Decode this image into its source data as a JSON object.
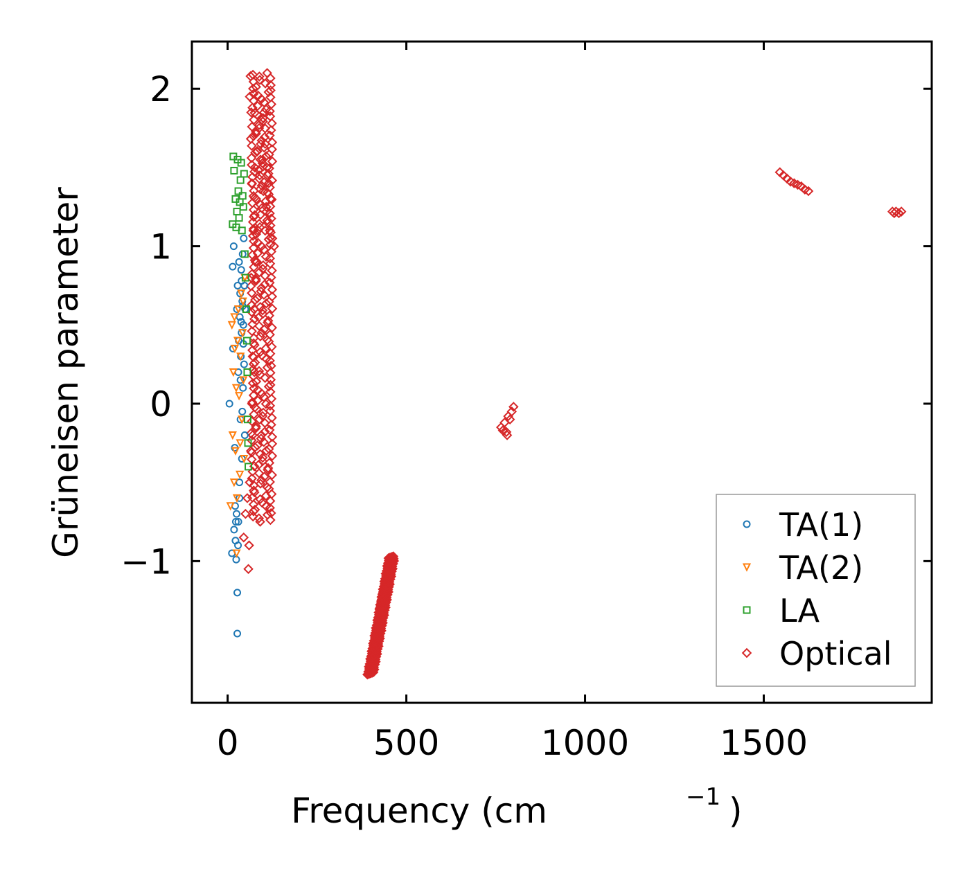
{
  "chart_data": {
    "type": "scatter",
    "title": "",
    "xlabel": "Frequency (cm",
    "xlabel_sup": "−1",
    "xlabel_suffix": ")",
    "ylabel": "Grüneisen parameter",
    "xlim": [
      -100,
      1970
    ],
    "ylim": [
      -1.9,
      2.3
    ],
    "xticks": [
      0,
      500,
      1000,
      1500
    ],
    "xtick_labels": [
      "0",
      "500",
      "1000",
      "1500"
    ],
    "yticks": [
      -1,
      0,
      1,
      2
    ],
    "ytick_labels": [
      "−1",
      "0",
      "1",
      "2"
    ],
    "legend_position": "lower-right",
    "series": [
      {
        "name": "TA(1)",
        "marker": "circle",
        "color": "#1f77b4",
        "points": [
          [
            5,
            0.0
          ],
          [
            12,
            -0.95
          ],
          [
            14,
            0.87
          ],
          [
            17,
            1.0
          ],
          [
            15,
            0.35
          ],
          [
            20,
            -0.28
          ],
          [
            22,
            -0.87
          ],
          [
            24,
            -0.99
          ],
          [
            25,
            -0.7
          ],
          [
            26,
            0.6
          ],
          [
            27,
            -1.2
          ],
          [
            27,
            -1.46
          ],
          [
            28,
            0.75
          ],
          [
            29,
            -0.9
          ],
          [
            30,
            0.2
          ],
          [
            30,
            -0.75
          ],
          [
            31,
            0.4
          ],
          [
            32,
            0.9
          ],
          [
            33,
            -0.5
          ],
          [
            34,
            0.55
          ],
          [
            35,
            0.7
          ],
          [
            36,
            -0.1
          ],
          [
            37,
            0.3
          ],
          [
            38,
            0.85
          ],
          [
            39,
            0.45
          ],
          [
            40,
            -0.35
          ],
          [
            41,
            0.65
          ],
          [
            42,
            0.95
          ],
          [
            43,
            0.1
          ],
          [
            44,
            0.5
          ],
          [
            45,
            1.05
          ],
          [
            46,
            0.25
          ],
          [
            47,
            0.75
          ],
          [
            48,
            -0.2
          ],
          [
            49,
            0.6
          ],
          [
            33,
            -0.6
          ],
          [
            36,
            0.15
          ],
          [
            41,
            -0.05
          ],
          [
            44,
            0.38
          ],
          [
            39,
            0.78
          ],
          [
            23,
            -0.75
          ],
          [
            18,
            -0.8
          ],
          [
            21,
            -0.65
          ],
          [
            38,
            0.52
          ],
          [
            42,
            0.62
          ]
        ]
      },
      {
        "name": "TA(2)",
        "marker": "triangle-down",
        "color": "#ff7f0e",
        "points": [
          [
            8,
            -0.65
          ],
          [
            12,
            0.5
          ],
          [
            14,
            -0.2
          ],
          [
            16,
            0.2
          ],
          [
            18,
            -0.5
          ],
          [
            20,
            0.35
          ],
          [
            22,
            -0.3
          ],
          [
            24,
            0.1
          ],
          [
            26,
            -0.6
          ],
          [
            28,
            0.4
          ],
          [
            30,
            0.6
          ],
          [
            32,
            0.05
          ],
          [
            34,
            -0.45
          ],
          [
            36,
            0.3
          ],
          [
            38,
            0.7
          ],
          [
            40,
            -0.1
          ],
          [
            42,
            0.45
          ],
          [
            44,
            0.15
          ],
          [
            46,
            -0.35
          ],
          [
            48,
            0.8
          ],
          [
            25,
            -0.95
          ],
          [
            19,
            0.55
          ],
          [
            35,
            -0.25
          ],
          [
            43,
            0.65
          ]
        ]
      },
      {
        "name": "LA",
        "marker": "square",
        "color": "#2ca02c",
        "points": [
          [
            14,
            1.14
          ],
          [
            16,
            1.57
          ],
          [
            18,
            1.48
          ],
          [
            22,
            1.3
          ],
          [
            24,
            1.12
          ],
          [
            26,
            1.22
          ],
          [
            28,
            1.55
          ],
          [
            30,
            1.35
          ],
          [
            32,
            1.18
          ],
          [
            34,
            1.28
          ],
          [
            36,
            1.42
          ],
          [
            38,
            1.53
          ],
          [
            40,
            1.1
          ],
          [
            42,
            1.32
          ],
          [
            44,
            1.25
          ],
          [
            46,
            1.46
          ],
          [
            48,
            0.95
          ],
          [
            50,
            0.8
          ],
          [
            52,
            0.6
          ],
          [
            54,
            0.4
          ],
          [
            55,
            0.2
          ],
          [
            56,
            -0.1
          ],
          [
            57,
            -0.25
          ],
          [
            58,
            -0.4
          ]
        ]
      },
      {
        "name": "Optical",
        "marker": "diamond",
        "color": "#d62728",
        "points": [
          [
            45,
            -0.85
          ],
          [
            50,
            -0.7
          ],
          [
            55,
            -0.6
          ],
          [
            58,
            -1.05
          ],
          [
            60,
            -0.9
          ],
          [
            62,
            -0.5
          ],
          [
            62,
            1.95
          ],
          [
            64,
            2.08
          ],
          [
            65,
            -0.3
          ],
          [
            66,
            1.85
          ],
          [
            68,
            0.0
          ],
          [
            70,
            0.3
          ],
          [
            72,
            1.7
          ],
          [
            74,
            0.6
          ],
          [
            76,
            1.5
          ],
          [
            78,
            0.9
          ],
          [
            80,
            1.3
          ],
          [
            82,
            1.6
          ],
          [
            85,
            1.1
          ],
          [
            88,
            1.75
          ],
          [
            90,
            1.45
          ],
          [
            92,
            1.2
          ],
          [
            95,
            1.8
          ],
          [
            98,
            1.55
          ],
          [
            100,
            1.35
          ],
          [
            102,
            1.85
          ],
          [
            105,
            1.65
          ],
          [
            108,
            1.25
          ],
          [
            110,
            1.5
          ],
          [
            112,
            1.15
          ],
          [
            115,
            1.4
          ],
          [
            118,
            1.1
          ],
          [
            120,
            1.3
          ],
          [
            125,
            1.05
          ],
          [
            130,
            1.0
          ],
          [
            68,
            1.4
          ],
          [
            72,
            1.1
          ],
          [
            75,
            0.2
          ],
          [
            70,
            -0.2
          ],
          [
            66,
            0.8
          ],
          [
            405,
            -1.7
          ],
          [
            410,
            -1.6
          ],
          [
            415,
            -1.5
          ],
          [
            420,
            -1.4
          ],
          [
            425,
            -1.3
          ],
          [
            430,
            -1.25
          ],
          [
            435,
            -1.2
          ],
          [
            440,
            -1.15
          ],
          [
            445,
            -1.1
          ],
          [
            450,
            -1.05
          ],
          [
            455,
            -1.0
          ],
          [
            458,
            -0.98
          ],
          [
            765,
            -0.15
          ],
          [
            770,
            -0.17
          ],
          [
            775,
            -0.12
          ],
          [
            780,
            -0.18
          ],
          [
            785,
            -0.08
          ],
          [
            790,
            -0.1
          ],
          [
            795,
            -0.05
          ],
          [
            800,
            -0.02
          ],
          [
            782,
            -0.2
          ],
          [
            1545,
            1.47
          ],
          [
            1555,
            1.45
          ],
          [
            1565,
            1.43
          ],
          [
            1575,
            1.41
          ],
          [
            1585,
            1.4
          ],
          [
            1595,
            1.39
          ],
          [
            1605,
            1.38
          ],
          [
            1615,
            1.36
          ],
          [
            1625,
            1.35
          ],
          [
            1860,
            1.22
          ],
          [
            1865,
            1.21
          ],
          [
            1870,
            1.22
          ],
          [
            1878,
            1.21
          ],
          [
            1885,
            1.22
          ]
        ],
        "dense_regions": [
          {
            "x_center": [
              62,
              130
            ],
            "y_range": [
              -0.75,
              2.1
            ]
          },
          {
            "x_center": [
              400,
              460
            ],
            "y_range": [
              -1.72,
              -0.97
            ]
          }
        ]
      }
    ]
  }
}
